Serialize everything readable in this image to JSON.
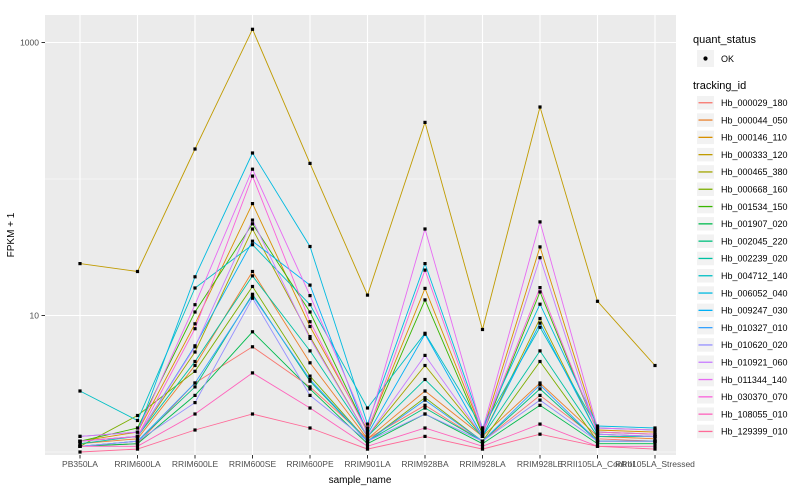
{
  "window": {
    "background": "#ffffff"
  },
  "axes": {
    "y_label": "FPKM + 1",
    "x_label": "sample_name",
    "y_tick_labels": [
      {
        "label": "1000",
        "value": 1000
      },
      {
        "label": "10",
        "value": 10
      }
    ]
  },
  "legend": {
    "quant_status_title": "quant_status",
    "quant_status_items": [
      {
        "label": "OK",
        "symbol": "point"
      }
    ],
    "tracking_id_title": "tracking_id",
    "key_background": "#f2f2f2"
  },
  "chart_data": {
    "type": "line",
    "y_scale": "log10",
    "xlabel": "sample_name",
    "ylabel": "FPKM + 1",
    "ylim": [
      1,
      1600
    ],
    "y_major_breaks": [
      10,
      1000
    ],
    "y_minor_breaks": [
      1,
      100
    ],
    "grid": true,
    "legend_position": "right",
    "panel_background": "#ebebeb",
    "grid_color": "#ffffff",
    "point_color": "#000000",
    "categories": [
      "PB350LA",
      "RRIM600LA",
      "RRIM600LE",
      "RRIM600SE",
      "RRIM600PE",
      "RRIM901LA",
      "RRIM928BA",
      "RRIM928LA",
      "RRIM928LE",
      "RRII105LA_Control",
      "RRII105LA_Stressed"
    ],
    "series": [
      {
        "name": "Hb_000029_180",
        "color": "#F8766D",
        "values": [
          1.1,
          1.15,
          3.2,
          5.9,
          3.0,
          1.25,
          2.2,
          1.2,
          2.6,
          1.25,
          1.2
        ]
      },
      {
        "name": "Hb_000044_050",
        "color": "#EA8331",
        "values": [
          1.15,
          1.25,
          4.3,
          21.0,
          4.5,
          1.25,
          2.8,
          1.3,
          3.2,
          1.3,
          1.25
        ]
      },
      {
        "name": "Hb_000146_110",
        "color": "#D89000",
        "values": [
          1.2,
          1.4,
          8.7,
          66.0,
          8.3,
          1.45,
          15.8,
          1.4,
          31.8,
          1.45,
          1.4
        ]
      },
      {
        "name": "Hb_000333_120",
        "color": "#C09B00",
        "values": [
          24.0,
          21.0,
          166.0,
          1250.0,
          130.0,
          14.1,
          260.0,
          7.9,
          337.0,
          12.7,
          4.3
        ]
      },
      {
        "name": "Hb_000465_380",
        "color": "#A3A500",
        "values": [
          1.2,
          1.3,
          5.4,
          43.0,
          7.0,
          1.3,
          4.3,
          1.3,
          9.5,
          1.35,
          1.3
        ]
      },
      {
        "name": "Hb_000668_160",
        "color": "#7CAE00",
        "values": [
          1.1,
          1.85,
          3.9,
          16.3,
          3.6,
          1.2,
          2.5,
          1.2,
          4.6,
          1.2,
          1.2
        ]
      },
      {
        "name": "Hb_001534_150",
        "color": "#39B600",
        "values": [
          1.2,
          1.5,
          10.6,
          47.0,
          10.6,
          1.4,
          13.0,
          1.35,
          14.9,
          1.4,
          1.35
        ]
      },
      {
        "name": "Hb_001907_020",
        "color": "#00BB4E",
        "values": [
          1.1,
          1.15,
          2.6,
          7.6,
          2.9,
          1.15,
          1.9,
          1.15,
          2.2,
          1.15,
          1.15
        ]
      },
      {
        "name": "Hb_002045_220",
        "color": "#00BF7D",
        "values": [
          1.1,
          1.2,
          3.0,
          14.3,
          3.3,
          1.2,
          2.1,
          1.2,
          2.9,
          1.2,
          1.2
        ]
      },
      {
        "name": "Hb_002239_020",
        "color": "#00C1A3",
        "values": [
          1.15,
          1.3,
          4.6,
          19.5,
          5.5,
          1.3,
          3.4,
          1.3,
          5.5,
          1.3,
          1.3
        ]
      },
      {
        "name": "Hb_004712_140",
        "color": "#00BFC4",
        "values": [
          2.8,
          1.7,
          15.9,
          33.0,
          12.0,
          2.1,
          7.4,
          1.5,
          8.2,
          1.5,
          1.45
        ]
      },
      {
        "name": "Hb_006052_040",
        "color": "#00BAE0",
        "values": [
          1.3,
          1.4,
          19.2,
          155.0,
          32.0,
          1.6,
          24.0,
          1.5,
          12.1,
          1.55,
          1.5
        ]
      },
      {
        "name": "Hb_009247_030",
        "color": "#00B0F6",
        "values": [
          1.2,
          1.3,
          6.0,
          35.0,
          16.7,
          1.35,
          7.3,
          1.3,
          8.8,
          1.35,
          1.3
        ]
      },
      {
        "name": "Hb_010327_010",
        "color": "#35A2FF",
        "values": [
          1.1,
          1.2,
          3.2,
          14.0,
          3.4,
          1.2,
          2.4,
          1.2,
          3.1,
          1.2,
          1.2
        ]
      },
      {
        "name": "Hb_010620_020",
        "color": "#9590FF",
        "values": [
          1.1,
          1.2,
          2.3,
          13.4,
          2.6,
          1.2,
          1.9,
          1.2,
          2.4,
          1.2,
          1.2
        ]
      },
      {
        "name": "Hb_010921_060",
        "color": "#C77CFF",
        "values": [
          1.2,
          1.3,
          5.9,
          50.0,
          6.8,
          1.3,
          5.1,
          1.3,
          26.5,
          1.35,
          1.3
        ]
      },
      {
        "name": "Hb_011344_140",
        "color": "#E76BF3",
        "values": [
          1.3,
          1.4,
          12.0,
          118.0,
          14.0,
          1.5,
          43.0,
          1.45,
          48.5,
          1.5,
          1.45
        ]
      },
      {
        "name": "Hb_030370_070",
        "color": "#FA62DB",
        "values": [
          1.2,
          1.3,
          8.0,
          105.0,
          9.0,
          1.4,
          21.5,
          1.4,
          16.0,
          1.4,
          1.35
        ]
      },
      {
        "name": "Hb_108055_010",
        "color": "#FF62BC",
        "values": [
          1.1,
          1.1,
          1.9,
          3.8,
          2.1,
          1.1,
          1.5,
          1.1,
          1.6,
          1.1,
          1.1
        ]
      },
      {
        "name": "Hb_129399_010",
        "color": "#FF6A98",
        "values": [
          1.0,
          1.05,
          1.45,
          1.9,
          1.5,
          1.05,
          1.3,
          1.05,
          1.35,
          1.1,
          1.05
        ]
      }
    ]
  }
}
